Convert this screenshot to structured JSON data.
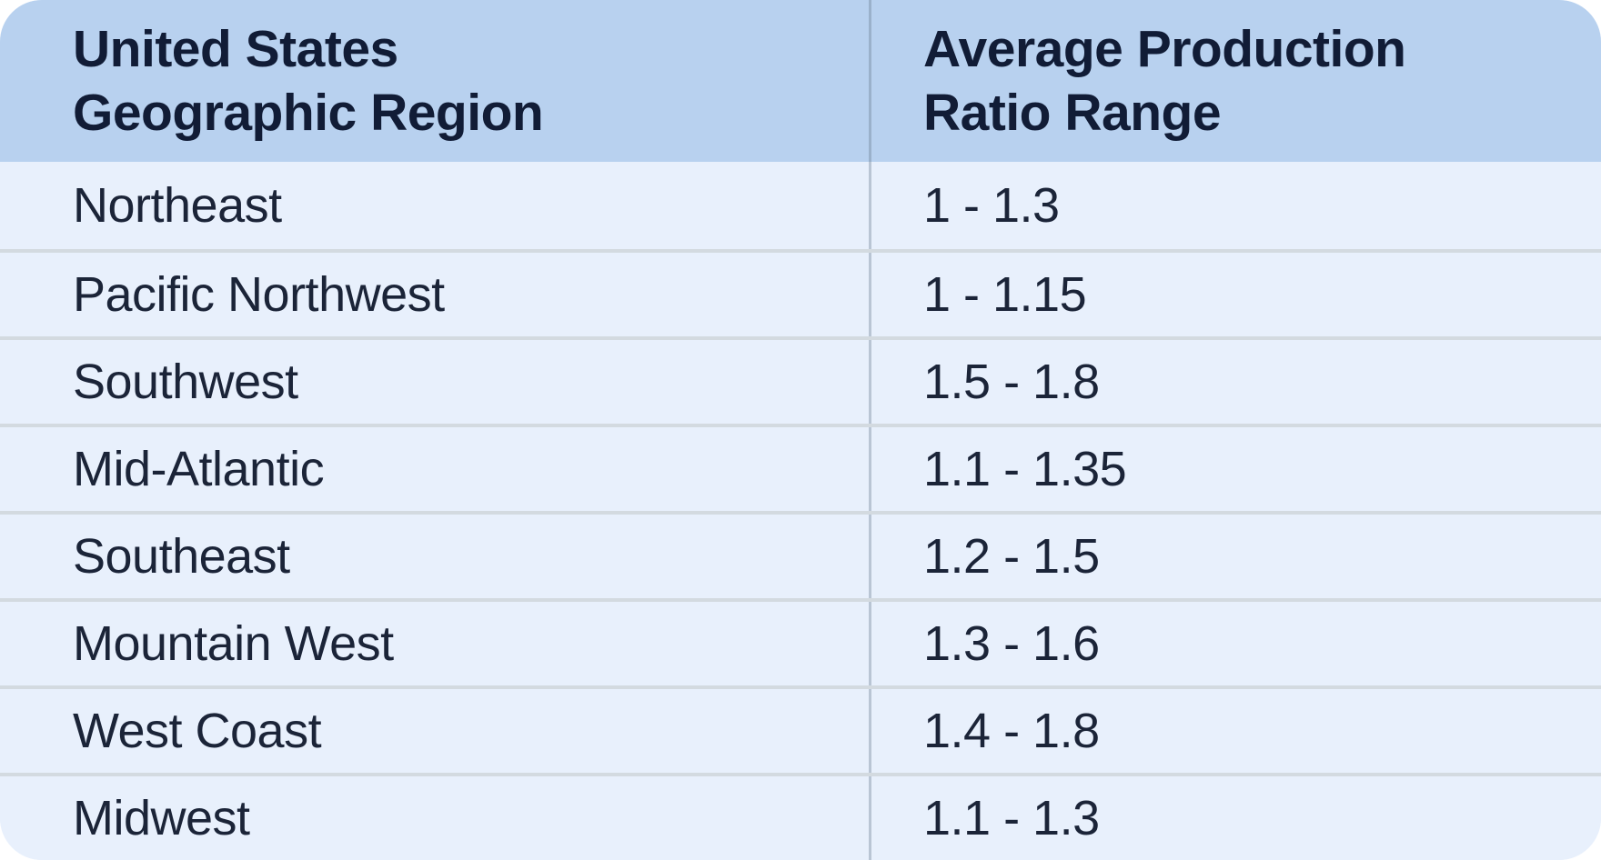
{
  "table": {
    "columns": [
      {
        "id": "region",
        "label": "United States\nGeographic Region"
      },
      {
        "id": "range",
        "label": "Average Production\nRatio Range"
      }
    ],
    "rows": [
      {
        "region": "Northeast",
        "range": "1 - 1.3"
      },
      {
        "region": "Pacific Northwest",
        "range": "1 - 1.15"
      },
      {
        "region": "Southwest",
        "range": "1.5 - 1.8"
      },
      {
        "region": "Mid-Atlantic",
        "range": "1.1 - 1.35"
      },
      {
        "region": "Southeast",
        "range": "1.2 - 1.5"
      },
      {
        "region": "Mountain West",
        "range": "1.3 - 1.6"
      },
      {
        "region": "West Coast",
        "range": "1.4 - 1.8"
      },
      {
        "region": "Midwest",
        "range": "1.1 - 1.3"
      }
    ]
  },
  "colors": {
    "header_background": "#b8d1ef",
    "body_background": "#e8f0fc",
    "text": "#15203a",
    "row_divider": "#d3dae0",
    "column_divider": "#94a8bc",
    "page_background": "#ffffff"
  },
  "chart_data": {
    "type": "table",
    "title": "",
    "columns": [
      "United States Geographic Region",
      "Average Production Ratio Range"
    ],
    "rows": [
      {
        "region": "Northeast",
        "range_label": "1 - 1.3",
        "range_min": 1.0,
        "range_max": 1.3
      },
      {
        "region": "Pacific Northwest",
        "range_label": "1 - 1.15",
        "range_min": 1.0,
        "range_max": 1.15
      },
      {
        "region": "Southwest",
        "range_label": "1.5 - 1.8",
        "range_min": 1.5,
        "range_max": 1.8
      },
      {
        "region": "Mid-Atlantic",
        "range_label": "1.1 - 1.35",
        "range_min": 1.1,
        "range_max": 1.35
      },
      {
        "region": "Southeast",
        "range_label": "1.2 - 1.5",
        "range_min": 1.2,
        "range_max": 1.5
      },
      {
        "region": "Mountain West",
        "range_label": "1.3 - 1.6",
        "range_min": 1.3,
        "range_max": 1.6
      },
      {
        "region": "West Coast",
        "range_label": "1.4 - 1.8",
        "range_min": 1.4,
        "range_max": 1.8
      },
      {
        "region": "Midwest",
        "range_label": "1.1 - 1.3",
        "range_min": 1.1,
        "range_max": 1.3
      }
    ]
  }
}
